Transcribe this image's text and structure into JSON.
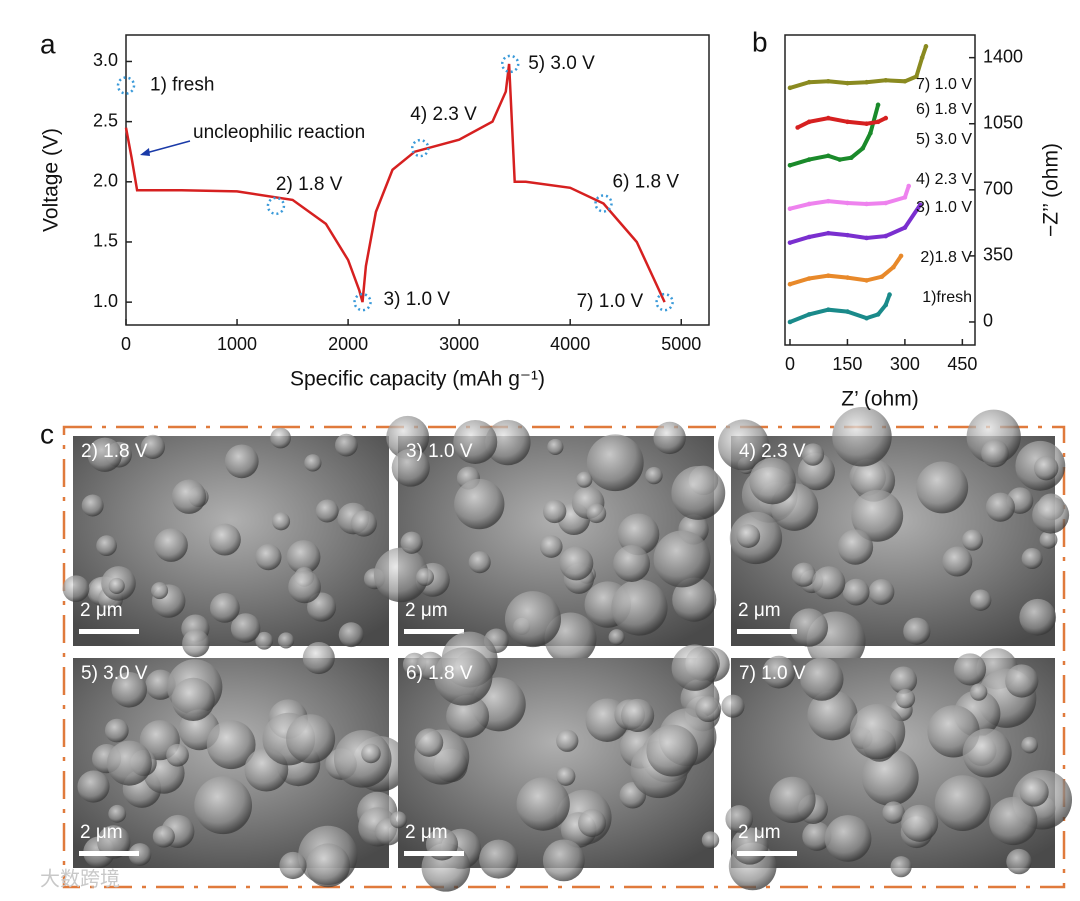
{
  "chart_data": [
    {
      "type": "line",
      "panel": "a",
      "x_label": "Specific capacity (mAh g⁻¹)",
      "y_label": "Voltage (V)",
      "x": [
        0,
        50,
        100,
        500,
        1000,
        1500,
        1800,
        2000,
        2100,
        2130,
        2160,
        2250,
        2400,
        2600,
        3000,
        3300,
        3420,
        3450,
        3470,
        3500,
        3600,
        4000,
        4300,
        4600,
        4750,
        4850
      ],
      "values": [
        2.45,
        2.2,
        1.93,
        1.93,
        1.92,
        1.85,
        1.65,
        1.35,
        1.1,
        1.0,
        1.3,
        1.75,
        2.1,
        2.25,
        2.35,
        2.5,
        2.75,
        2.98,
        2.6,
        2.0,
        2.0,
        1.95,
        1.82,
        1.5,
        1.2,
        1.0
      ],
      "color": "#d62020",
      "points": {
        "x": [
          0,
          1350,
          2130,
          2650,
          3460,
          4300,
          4850
        ],
        "y": [
          2.8,
          1.8,
          1.0,
          2.28,
          2.98,
          1.82,
          1.0
        ],
        "color": "#3a9ad9",
        "labels": [
          "1) fresh",
          "2) 1.8 V",
          "3) 1.0 V",
          "4) 2.3 V",
          "5) 3.0 V",
          "6) 1.8 V",
          "7) 1.0 V"
        ]
      },
      "annotation": "uncleophilic reaction",
      "xlim": [
        0,
        5250
      ],
      "ylim": [
        0.81,
        3.22
      ],
      "xticks": [
        0,
        1000,
        2000,
        3000,
        4000,
        5000
      ],
      "yticks": [
        {
          "value": 1,
          "label": "1.0"
        },
        1.5,
        {
          "value": 2,
          "label": "2.0"
        },
        2.5,
        {
          "value": 3,
          "label": "3.0"
        }
      ]
    },
    {
      "type": "line",
      "panel": "b",
      "x_label": "Z’ (ohm)",
      "y_label": "−Z’’ (ohm)",
      "y_axis_position": "right",
      "xlim": [
        -13,
        483
      ],
      "ylim": [
        -122,
        1520
      ],
      "xticks": [
        0,
        150,
        300,
        450
      ],
      "yticks": [
        0,
        350,
        700,
        1050,
        1400
      ],
      "series": [
        {
          "name": "1)fresh",
          "color": "#1a8a8a",
          "x": [
            0,
            50,
            100,
            150,
            200,
            230,
            250,
            260
          ],
          "values": [
            0,
            40,
            65,
            55,
            20,
            40,
            90,
            145
          ]
        },
        {
          "name": "2)1.8 V",
          "color": "#e8892a",
          "x": [
            0,
            50,
            100,
            150,
            200,
            240,
            270,
            290
          ],
          "values": [
            200,
            230,
            245,
            235,
            220,
            240,
            290,
            350
          ]
        },
        {
          "name": "3) 1.0 V",
          "color": "#7a2fcf",
          "x": [
            0,
            50,
            100,
            150,
            200,
            250,
            300,
            340
          ],
          "values": [
            420,
            450,
            470,
            460,
            445,
            455,
            500,
            620
          ]
        },
        {
          "name": "4) 2.3 V",
          "color": "#ee82ee",
          "x": [
            0,
            50,
            100,
            150,
            200,
            250,
            300,
            310
          ],
          "values": [
            600,
            625,
            640,
            630,
            625,
            630,
            660,
            720
          ]
        },
        {
          "name": "5) 3.0 V",
          "color": "#1a8a2a",
          "x": [
            0,
            50,
            100,
            130,
            160,
            190,
            210,
            230
          ],
          "values": [
            830,
            860,
            880,
            860,
            870,
            920,
            1000,
            1150
          ]
        },
        {
          "name": "6) 1.8 V",
          "color": "#d62020",
          "x": [
            20,
            50,
            100,
            150,
            200,
            230,
            250
          ],
          "values": [
            1030,
            1060,
            1080,
            1060,
            1050,
            1060,
            1080
          ]
        },
        {
          "name": "7) 1.0 V",
          "color": "#8a8a20",
          "x": [
            0,
            50,
            100,
            150,
            200,
            250,
            300,
            330,
            345,
            355
          ],
          "values": [
            1240,
            1270,
            1275,
            1265,
            1270,
            1280,
            1275,
            1300,
            1400,
            1460
          ]
        }
      ]
    }
  ],
  "panel_c": {
    "label": "c",
    "images": [
      {
        "label": "2) 1.8 V",
        "scale": "2 μm"
      },
      {
        "label": "3) 1.0 V",
        "scale": "2 μm"
      },
      {
        "label": "4) 2.3 V",
        "scale": "2 μm"
      },
      {
        "label": "5) 3.0 V",
        "scale": "2 μm"
      },
      {
        "label": "6) 1.8 V",
        "scale": "2 μm"
      },
      {
        "label": "7) 1.0 V",
        "scale": "2 μm"
      }
    ]
  },
  "watermark": "大数跨境"
}
